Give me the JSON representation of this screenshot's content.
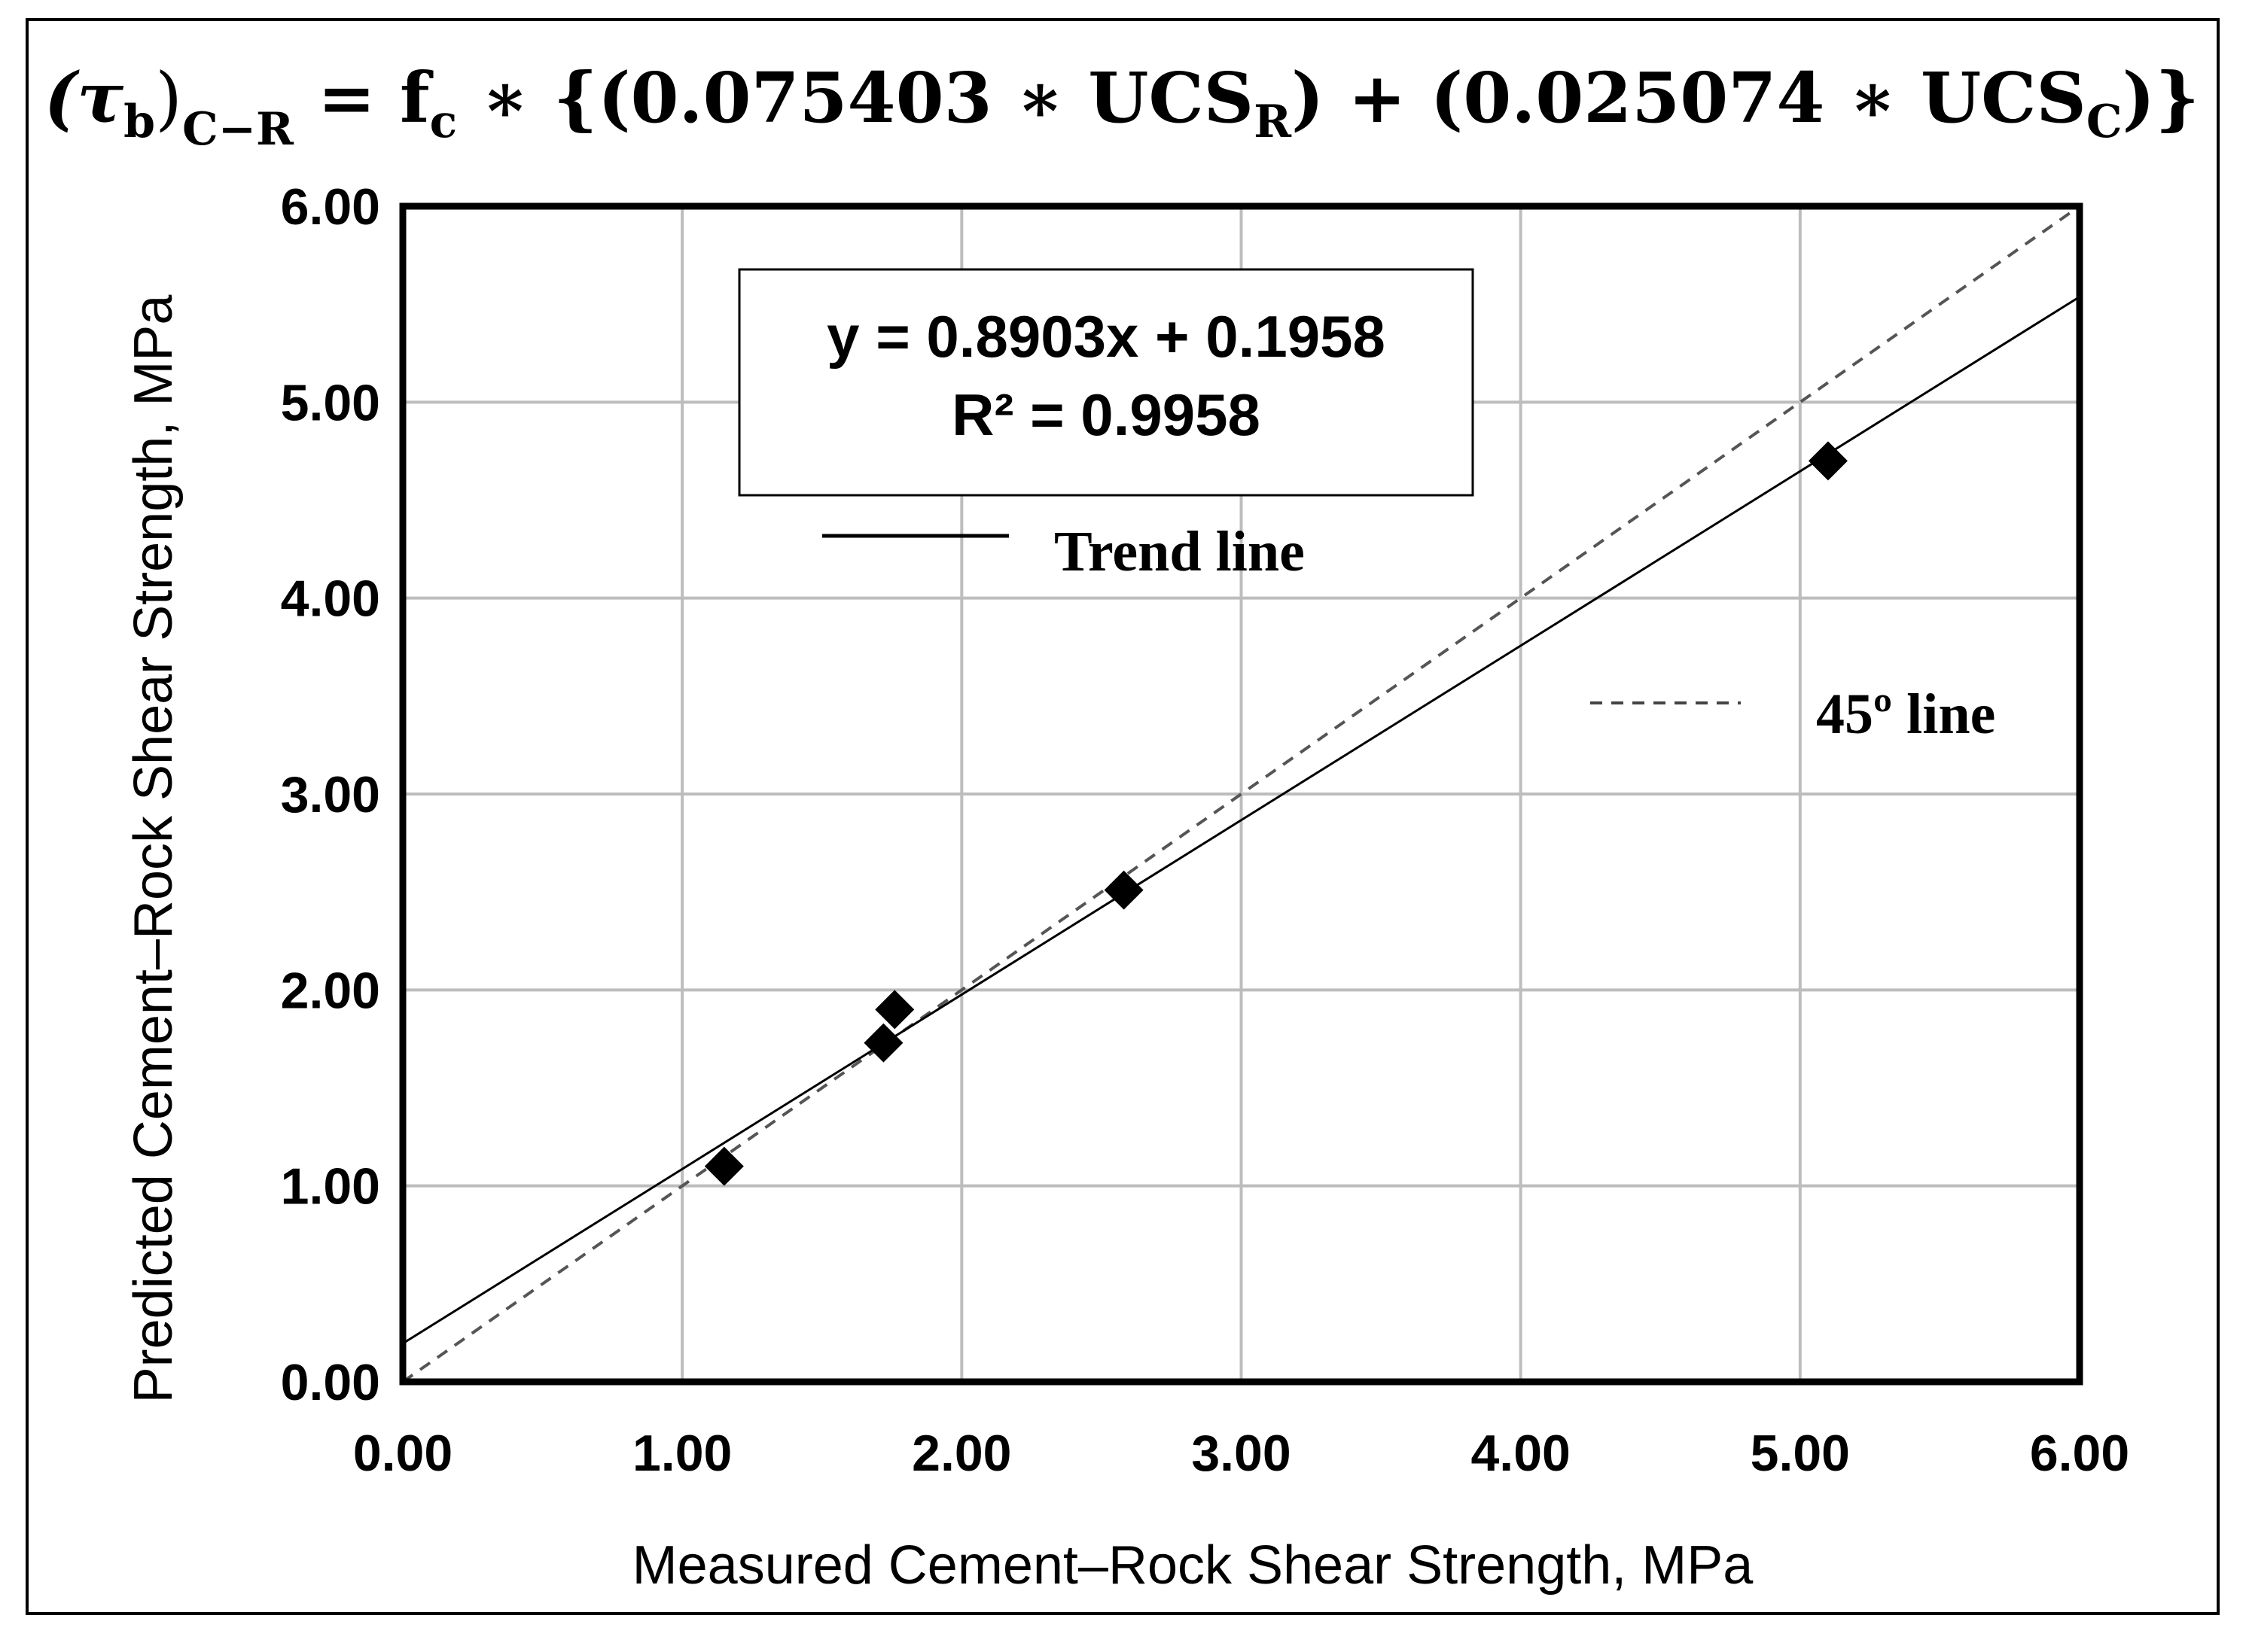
{
  "chart_data": {
    "type": "scatter",
    "title": "(τb)C−R = fc * {(0.075403 * UCSR) + (0.025074 * UCSC)}",
    "title_parts": {
      "tau": "(τ",
      "tau_sub": "b",
      "tau_close": ")",
      "tau_sub2": "C−R",
      "eq_a": " = f",
      "fc_sub": "c",
      "eq_b": " ∗ {(0.075403 ∗  UCS",
      "ucs_r_sub": "R",
      "eq_c": ") + (0.025074 ∗  UCS",
      "ucs_c_sub": "C",
      "eq_d": ")}"
    },
    "xlabel": "Measured Cement–Rock Shear Strength, MPa",
    "ylabel": "Predicted Cement–Rock Shear Strength, MPa",
    "xlim": [
      0,
      6
    ],
    "ylim": [
      0,
      6
    ],
    "x_tick_labels": [
      "0.00",
      "1.00",
      "2.00",
      "3.00",
      "4.00",
      "5.00",
      "6.00"
    ],
    "y_tick_labels": [
      "0.00",
      "1.00",
      "2.00",
      "3.00",
      "4.00",
      "5.00",
      "6.00"
    ],
    "grid": true,
    "series": [
      {
        "marker": "diamond",
        "color": "#000000",
        "points": [
          {
            "x": 1.15,
            "y": 1.1
          },
          {
            "x": 1.72,
            "y": 1.73
          },
          {
            "x": 1.76,
            "y": 1.9
          },
          {
            "x": 2.58,
            "y": 2.51
          },
          {
            "x": 5.1,
            "y": 4.7
          }
        ]
      }
    ],
    "trend_line": {
      "slope": 0.8903,
      "intercept": 0.1958,
      "style": "solid",
      "label": "Trend line"
    },
    "reference_line": {
      "slope": 1,
      "intercept": 0,
      "style": "dashed",
      "label": "45º line"
    },
    "stats_box": {
      "equation": "y = 0.8903x + 0.1958",
      "r2": "R² = 0.9958"
    }
  }
}
